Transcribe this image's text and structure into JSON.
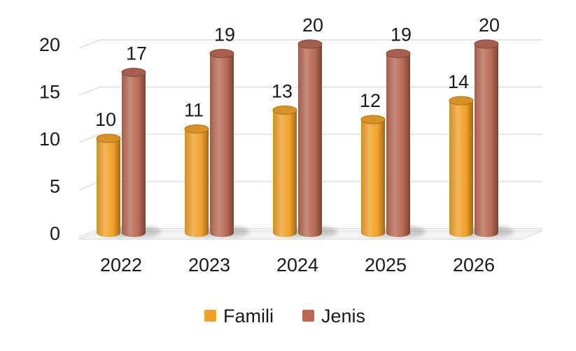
{
  "chart_data": {
    "type": "bar",
    "categories": [
      "2022",
      "2023",
      "2024",
      "2025",
      "2026"
    ],
    "series": [
      {
        "name": "Famili",
        "values": [
          10,
          11,
          13,
          12,
          14
        ],
        "color": "#f0a12a"
      },
      {
        "name": "Jenis",
        "values": [
          17,
          19,
          20,
          19,
          20
        ],
        "color": "#b86a55"
      }
    ],
    "y_ticks": [
      "0",
      "5",
      "10",
      "15",
      "20"
    ],
    "ylim": [
      0,
      20
    ],
    "grid": true,
    "legend_position": "bottom",
    "style": "3d-cylinder"
  }
}
